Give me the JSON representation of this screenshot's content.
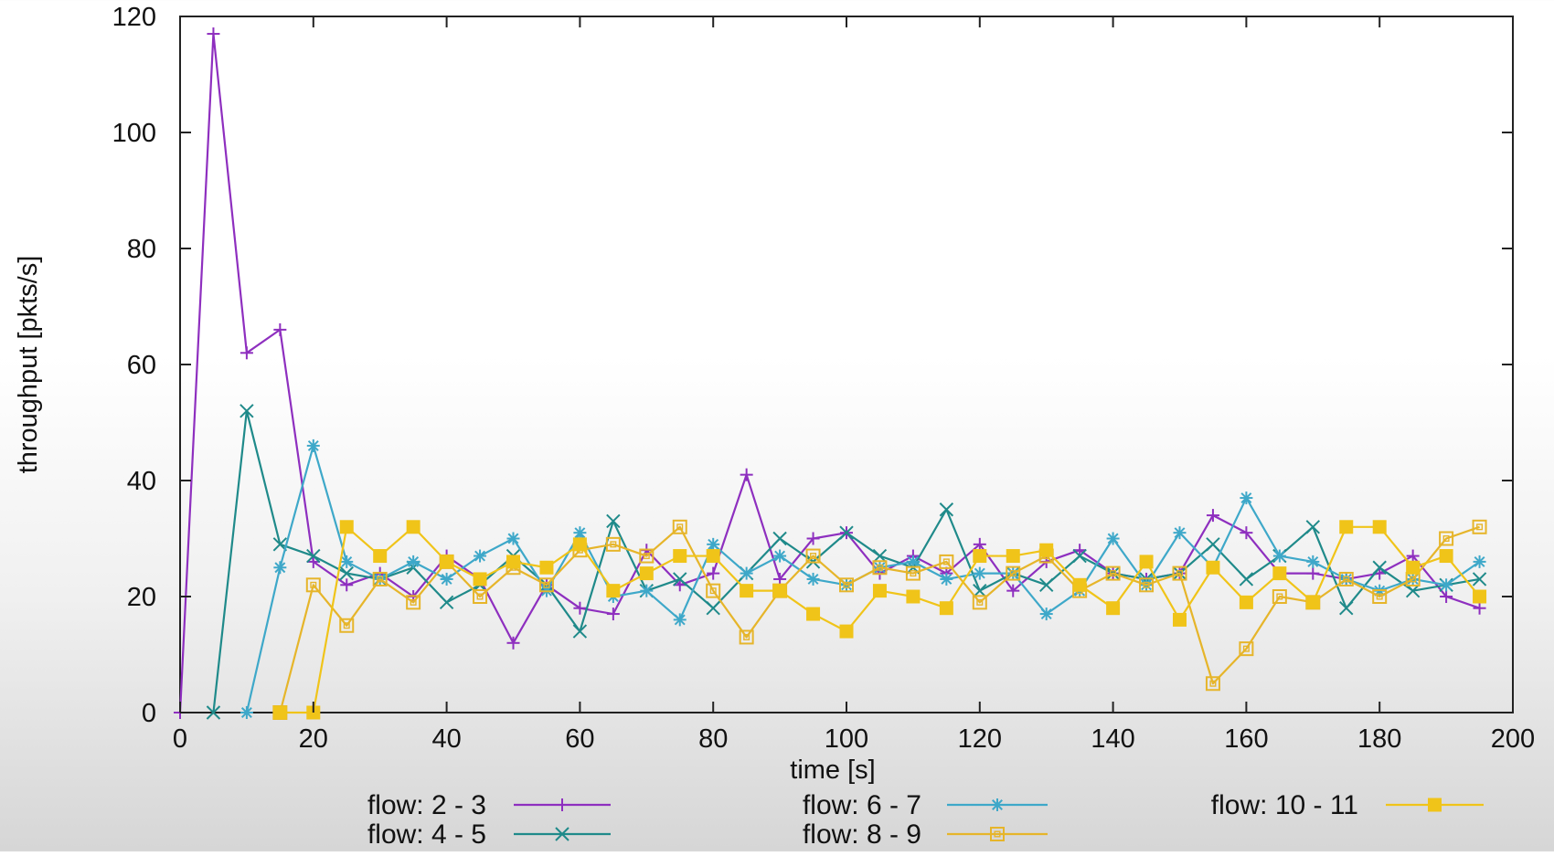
{
  "chart_data": {
    "type": "line",
    "xlabel": "time [s]",
    "ylabel": "throughput [pkts/s]",
    "xlim": [
      0,
      200
    ],
    "ylim": [
      0,
      120
    ],
    "xticks": [
      0,
      20,
      40,
      60,
      80,
      100,
      120,
      140,
      160,
      180,
      200
    ],
    "yticks": [
      0,
      20,
      40,
      60,
      80,
      100,
      120
    ],
    "grid": false,
    "legend_position": "bottom",
    "series": [
      {
        "name": "flow: 2 - 3",
        "color": "#8e2fbf",
        "marker": "plus",
        "x": [
          0,
          5,
          10,
          15,
          20,
          25,
          30,
          35,
          40,
          45,
          50,
          55,
          60,
          65,
          70,
          75,
          80,
          85,
          90,
          95,
          100,
          105,
          110,
          115,
          120,
          125,
          130,
          135,
          140,
          145,
          150,
          155,
          160,
          165,
          170,
          175,
          180,
          185,
          190,
          195
        ],
        "y": [
          0,
          117,
          62,
          66,
          26,
          22,
          24,
          20,
          27,
          23,
          12,
          22,
          18,
          17,
          28,
          22,
          24,
          41,
          23,
          30,
          31,
          24,
          27,
          24,
          29,
          21,
          26,
          28,
          24,
          23,
          24,
          34,
          31,
          24,
          24,
          23,
          24,
          27,
          20,
          18
        ]
      },
      {
        "name": "flow: 4 - 5",
        "color": "#1f8a8a",
        "marker": "cross",
        "x": [
          5,
          10,
          15,
          20,
          25,
          30,
          35,
          40,
          45,
          50,
          55,
          60,
          65,
          70,
          75,
          80,
          85,
          90,
          95,
          100,
          105,
          110,
          115,
          120,
          125,
          130,
          135,
          140,
          145,
          150,
          155,
          160,
          165,
          170,
          175,
          180,
          185,
          190,
          195
        ],
        "y": [
          0,
          52,
          29,
          27,
          24,
          23,
          25,
          19,
          22,
          27,
          22,
          14,
          33,
          21,
          23,
          18,
          24,
          30,
          26,
          31,
          27,
          25,
          35,
          21,
          24,
          22,
          27,
          24,
          23,
          24,
          29,
          23,
          27,
          32,
          18,
          25,
          21,
          22,
          23
        ]
      },
      {
        "name": "flow: 6 - 7",
        "color": "#3ea8c9",
        "marker": "star",
        "x": [
          10,
          15,
          20,
          25,
          30,
          35,
          40,
          45,
          50,
          55,
          60,
          65,
          70,
          75,
          80,
          85,
          90,
          95,
          100,
          105,
          110,
          115,
          120,
          125,
          130,
          135,
          140,
          145,
          150,
          155,
          160,
          165,
          170,
          175,
          180,
          185,
          190,
          195
        ],
        "y": [
          0,
          25,
          46,
          26,
          23,
          26,
          23,
          27,
          30,
          21,
          31,
          20,
          21,
          16,
          29,
          24,
          27,
          23,
          22,
          25,
          26,
          23,
          24,
          24,
          17,
          21,
          30,
          22,
          31,
          25,
          37,
          27,
          26,
          23,
          21,
          23,
          22,
          26
        ]
      },
      {
        "name": "flow: 8 - 9",
        "color": "#e6b52a",
        "marker": "box",
        "x": [
          15,
          20,
          25,
          30,
          35,
          40,
          45,
          50,
          55,
          60,
          65,
          70,
          75,
          80,
          85,
          90,
          95,
          100,
          105,
          110,
          115,
          120,
          125,
          130,
          135,
          140,
          145,
          150,
          155,
          160,
          165,
          170,
          175,
          180,
          185,
          190,
          195
        ],
        "y": [
          0,
          22,
          15,
          23,
          19,
          26,
          20,
          25,
          22,
          28,
          29,
          27,
          32,
          21,
          13,
          21,
          27,
          22,
          25,
          24,
          26,
          19,
          24,
          27,
          21,
          24,
          22,
          24,
          5,
          11,
          20,
          19,
          23,
          20,
          23,
          30,
          32
        ]
      },
      {
        "name": "flow: 10 - 11",
        "color": "#f0c419",
        "marker": "filled-box",
        "x": [
          15,
          20,
          25,
          30,
          35,
          40,
          45,
          50,
          55,
          60,
          65,
          70,
          75,
          80,
          85,
          90,
          95,
          100,
          105,
          110,
          115,
          120,
          125,
          130,
          135,
          140,
          145,
          150,
          155,
          160,
          165,
          170,
          175,
          180,
          185,
          190,
          195
        ],
        "y": [
          0,
          0,
          32,
          27,
          32,
          26,
          23,
          26,
          25,
          29,
          21,
          24,
          27,
          27,
          21,
          21,
          17,
          14,
          21,
          20,
          18,
          27,
          27,
          28,
          22,
          18,
          26,
          16,
          25,
          19,
          24,
          19,
          32,
          32,
          25,
          27,
          20
        ]
      }
    ]
  }
}
